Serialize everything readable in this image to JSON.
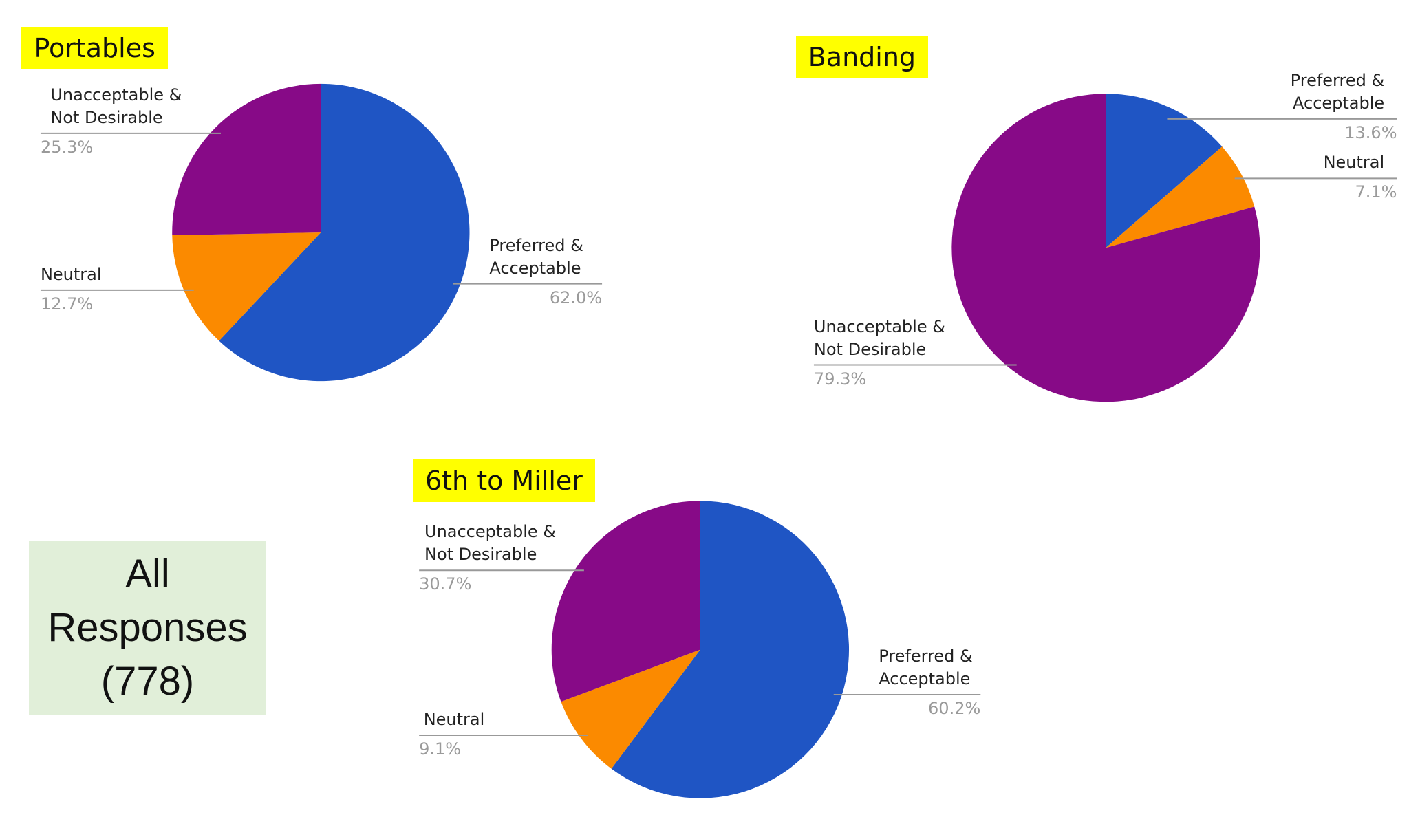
{
  "chart_data": [
    {
      "type": "pie",
      "title": "Portables",
      "categories": [
        "Preferred & Acceptable",
        "Neutral",
        "Unacceptable & Not Desirable"
      ],
      "values": [
        62.0,
        12.7,
        25.3
      ],
      "value_labels": [
        "62.0%",
        "12.7%",
        "25.3%"
      ],
      "colors": [
        "#1f55c4",
        "#fb8a00",
        "#870a87"
      ]
    },
    {
      "type": "pie",
      "title": "Banding",
      "categories": [
        "Preferred & Acceptable",
        "Neutral",
        "Unacceptable & Not Desirable"
      ],
      "values": [
        13.6,
        7.1,
        79.3
      ],
      "value_labels": [
        "13.6%",
        "7.1%",
        "79.3%"
      ],
      "colors": [
        "#1f55c4",
        "#fb8a00",
        "#870a87"
      ]
    },
    {
      "type": "pie",
      "title": "6th to Miller",
      "categories": [
        "Preferred & Acceptable",
        "Neutral",
        "Unacceptable & Not Desirable"
      ],
      "values": [
        60.2,
        9.1,
        30.7
      ],
      "value_labels": [
        "60.2%",
        "9.1%",
        "30.7%"
      ],
      "colors": [
        "#1f55c4",
        "#fb8a00",
        "#870a87"
      ]
    }
  ],
  "summary_box": {
    "lines": [
      "All",
      "Responses",
      "(778)"
    ]
  }
}
